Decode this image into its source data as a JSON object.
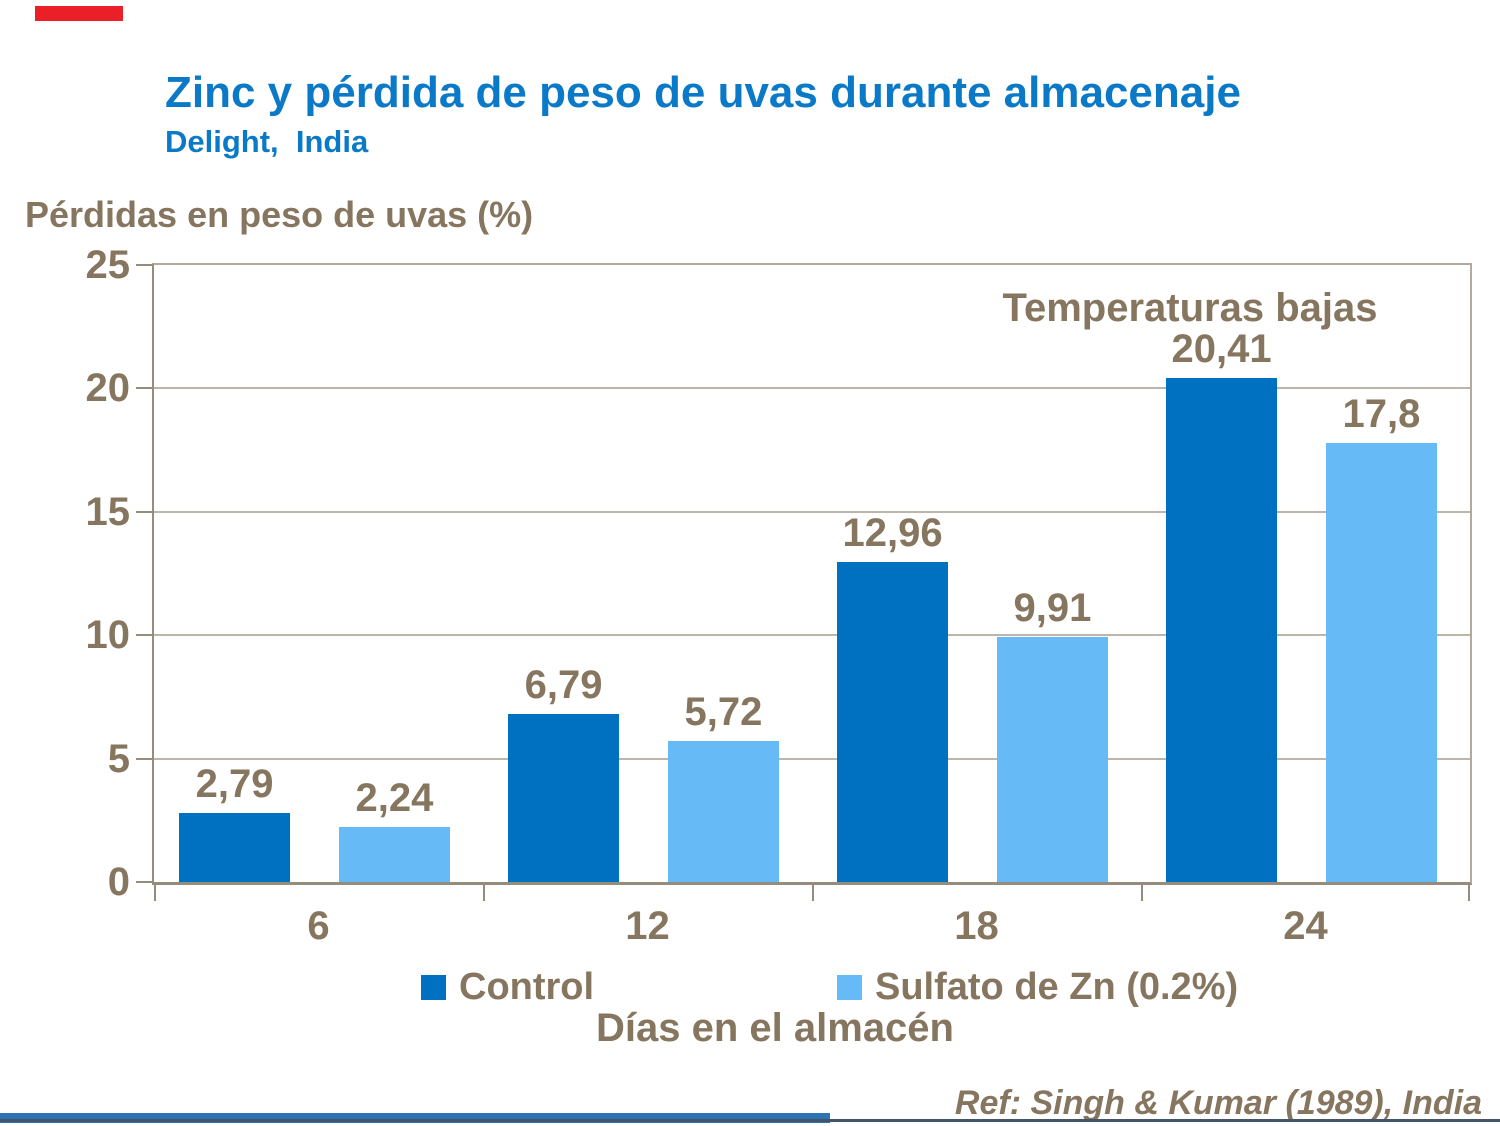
{
  "slide": {
    "title": "Zinc y pérdida de peso de uvas durante almacenaje",
    "subtitle": "Delight,  India",
    "reference": "Ref: Singh & Kumar (1989), India"
  },
  "chart_data": {
    "type": "bar",
    "title": "Zinc y pérdida de peso de uvas durante almacenaje — Delight, India",
    "ylabel": "Pérdidas en peso de uvas (%)",
    "xlabel": "Días en el almacén",
    "categories": [
      "6",
      "12",
      "18",
      "24"
    ],
    "series": [
      {
        "name": "Control",
        "color": "#0070C0",
        "values": [
          2.79,
          6.79,
          12.96,
          20.41
        ],
        "labels": [
          "2,79",
          "6,79",
          "12,96",
          "20,41"
        ]
      },
      {
        "name": "Sulfato de Zn (0.2%)",
        "color": "#66BBF6",
        "values": [
          2.24,
          5.72,
          9.91,
          17.8
        ],
        "labels": [
          "2,24",
          "5,72",
          "9,91",
          "17,8"
        ]
      }
    ],
    "annotation": "Temperaturas bajas",
    "y_ticks": [
      0,
      5,
      10,
      15,
      20,
      25
    ],
    "ylim": [
      0,
      25
    ],
    "grid": true,
    "legend_position": "bottom"
  },
  "decor": {
    "accent_red": "#EB1F27",
    "footer_bar_blue": "#2E74B5",
    "footer_line": "#44546A"
  }
}
